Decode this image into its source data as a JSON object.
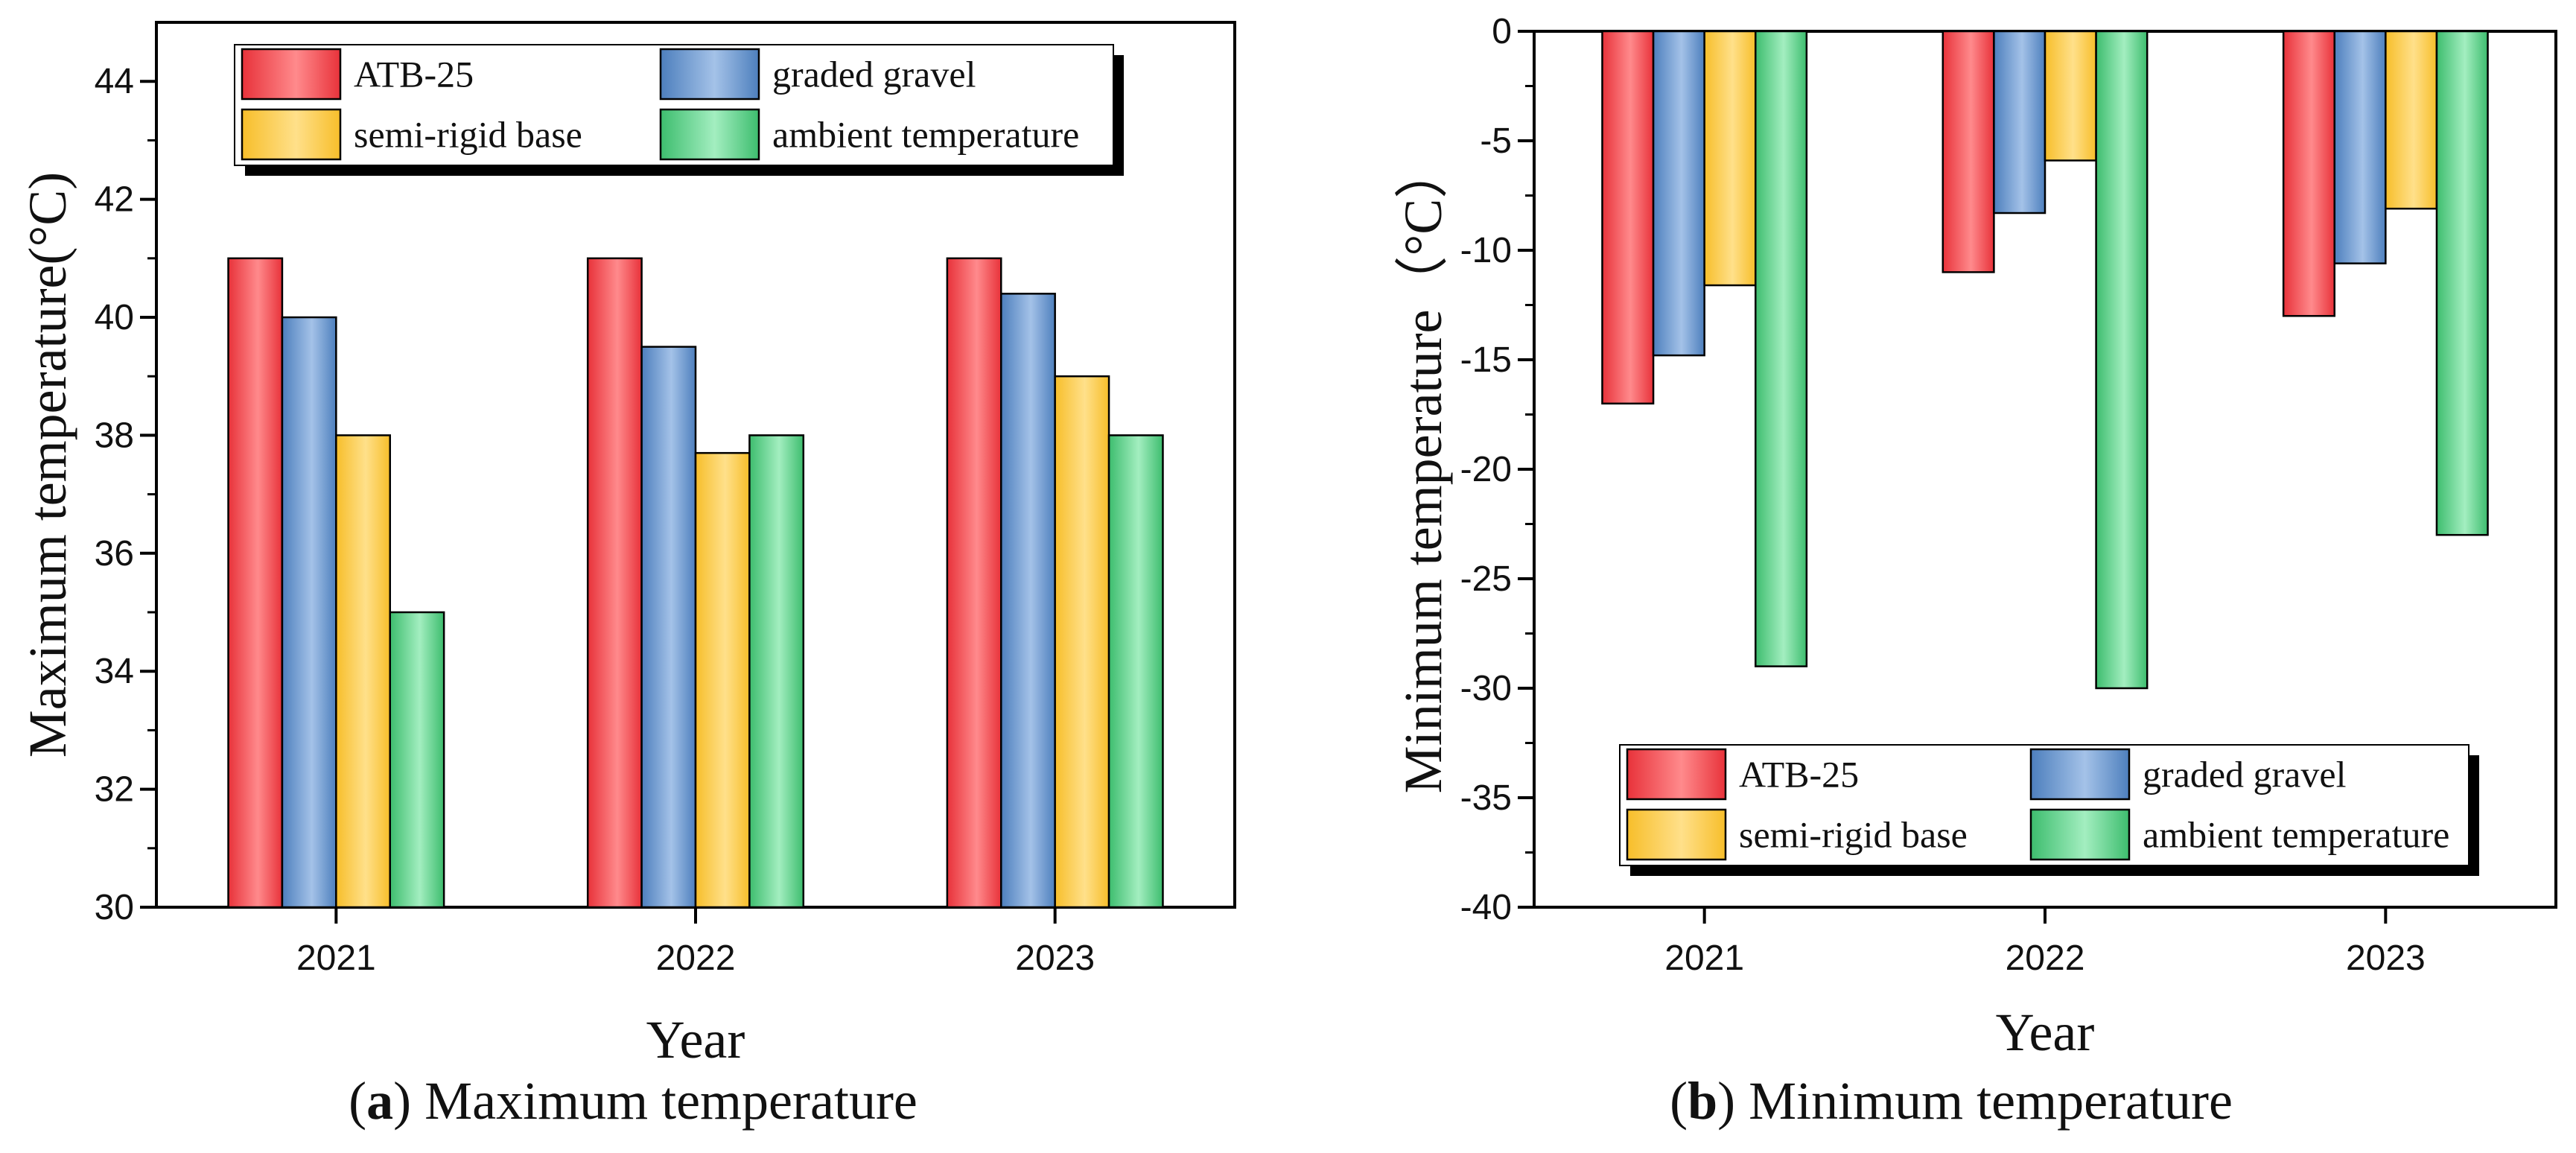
{
  "chart_data": [
    {
      "type": "bar",
      "categories": [
        "2021",
        "2022",
        "2023"
      ],
      "series": [
        {
          "name": "ATB-25",
          "values": [
            41,
            41,
            41
          ]
        },
        {
          "name": "graded gravel",
          "values": [
            40,
            39.5,
            40.4
          ]
        },
        {
          "name": "semi-rigid base",
          "values": [
            38,
            37.7,
            39
          ]
        },
        {
          "name": "ambient temperature",
          "values": [
            35,
            38,
            38
          ]
        }
      ],
      "xlabel": "Year",
      "ylabel": "Maximum temperature(°C)",
      "ylim": [
        30,
        45
      ],
      "yticks": [
        30,
        32,
        34,
        36,
        38,
        40,
        42,
        44
      ],
      "legend_position": "top",
      "caption_letter": "a",
      "caption_text": " Maximum temperature"
    },
    {
      "type": "bar",
      "categories": [
        "2021",
        "2022",
        "2023"
      ],
      "series": [
        {
          "name": "ATB-25",
          "values": [
            -17,
            -11,
            -13
          ]
        },
        {
          "name": "graded gravel",
          "values": [
            -14.8,
            -8.3,
            -10.6
          ]
        },
        {
          "name": "semi-rigid base",
          "values": [
            -11.6,
            -5.9,
            -8.1
          ]
        },
        {
          "name": "ambient temperature",
          "values": [
            -29,
            -30,
            -23
          ]
        }
      ],
      "xlabel": "Year",
      "ylabel": "Minimum temperature（°C）",
      "ylim": [
        -40,
        0
      ],
      "yticks": [
        -40,
        -35,
        -30,
        -25,
        -20,
        -15,
        -10,
        -5,
        0
      ],
      "legend_position": "bottom",
      "caption_letter": "b",
      "caption_text": " Minimum temperature"
    }
  ],
  "colors": {
    "series": [
      "#e8323a",
      "#4d7fbd",
      "#f7be2a",
      "#3dbd6e"
    ],
    "series_light": [
      "#ff8a8c",
      "#a4c2e8",
      "#ffe08a",
      "#a3eec0"
    ]
  }
}
